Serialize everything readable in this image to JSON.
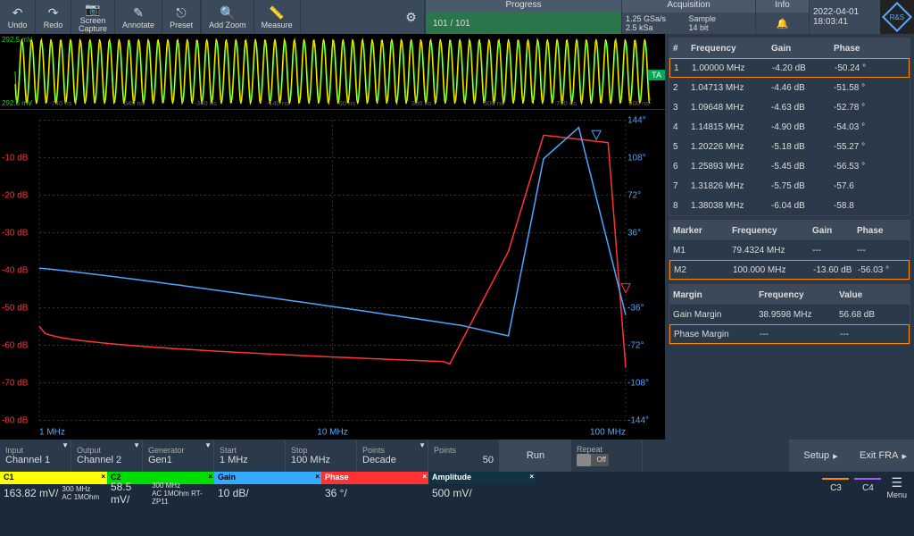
{
  "toolbar": {
    "undo": "Undo",
    "redo": "Redo",
    "screen_capture": "Screen\nCapture",
    "annotate": "Annotate",
    "preset": "Preset",
    "add_zoom": "Add Zoom",
    "measure": "Measure"
  },
  "progress": {
    "title": "Progress",
    "text": "101 / 101"
  },
  "acquisition": {
    "title": "Acquisition",
    "rate": "1.25 GSa/s",
    "samples": "2.5 kSa",
    "mode": "Sample",
    "bits": "14 bit"
  },
  "info": {
    "title": "Info"
  },
  "datetime": {
    "date": "2022-04-01",
    "time": "18:03:41"
  },
  "logo": "R&S",
  "waveform": {
    "top_label": "292.5 mV",
    "bot_label": "292.5 mV",
    "ta_label": "TA",
    "color1": "#ffee00",
    "color2": "#00dd00",
    "xlabels": [
      "-740 ns",
      "-540 ns",
      "-340 ns",
      "-140 ns",
      "60 ns",
      "300 ns",
      "500 ns",
      "700 ns",
      "900 ns"
    ]
  },
  "bode": {
    "gain_color": "#ff3333",
    "phase_color": "#4da6ff",
    "ylabels_gain": [
      "",
      "-10 dB",
      "-20 dB",
      "-30 dB",
      "-40 dB",
      "-50 dB",
      "-60 dB",
      "-70 dB",
      "-80 dB"
    ],
    "ylabels_phase": [
      "144°",
      "108°",
      "72°",
      "36°",
      "",
      "-36°",
      "-72°",
      "-108°",
      "-144°"
    ],
    "xlabels": [
      "1 MHz",
      "10 MHz",
      "100 MHz"
    ],
    "gain_line": "#ff3333",
    "phase_line": "#4da6ff",
    "marker_gain": "dB",
    "marker_phase": "°"
  },
  "freq_table": {
    "headers": {
      "n": "#",
      "f": "Frequency",
      "g": "Gain",
      "p": "Phase"
    },
    "rows": [
      {
        "n": "1",
        "f": "1.00000 MHz",
        "g": "-4.20 dB",
        "p": "-50.24 °",
        "sel": true
      },
      {
        "n": "2",
        "f": "1.04713 MHz",
        "g": "-4.46 dB",
        "p": "-51.58 °"
      },
      {
        "n": "3",
        "f": "1.09648 MHz",
        "g": "-4.63 dB",
        "p": "-52.78 °"
      },
      {
        "n": "4",
        "f": "1.14815 MHz",
        "g": "-4.90 dB",
        "p": "-54.03 °"
      },
      {
        "n": "5",
        "f": "1.20226 MHz",
        "g": "-5.18 dB",
        "p": "-55.27 °"
      },
      {
        "n": "6",
        "f": "1.25893 MHz",
        "g": "-5.45 dB",
        "p": "-56.53 °"
      },
      {
        "n": "7",
        "f": "1.31826 MHz",
        "g": "-5.75 dB",
        "p": "-57.6"
      },
      {
        "n": "8",
        "f": "1.38038 MHz",
        "g": "-6.04 dB",
        "p": "-58.8"
      }
    ]
  },
  "marker_table": {
    "headers": {
      "m": "Marker",
      "f": "Frequency",
      "g": "Gain",
      "p": "Phase"
    },
    "rows": [
      {
        "m": "M1",
        "f": "79.4324 MHz",
        "g": "---",
        "p": "---"
      },
      {
        "m": "M2",
        "f": "100.000 MHz",
        "g": "-13.60 dB",
        "p": "-56.03 °",
        "sel": true
      }
    ]
  },
  "margin_table": {
    "headers": {
      "m": "Margin",
      "f": "Frequency",
      "v": "Value"
    },
    "rows": [
      {
        "m": "Gain Margin",
        "f": "38.9598 MHz",
        "v": "56.68 dB"
      },
      {
        "m": "Phase Margin",
        "f": "---",
        "v": "---",
        "sel": true
      }
    ]
  },
  "params": {
    "input": {
      "label": "Input",
      "value": "Channel 1"
    },
    "output": {
      "label": "Output",
      "value": "Channel 2"
    },
    "generator": {
      "label": "Generator",
      "value": "Gen1"
    },
    "start": {
      "label": "Start",
      "value": "1 MHz"
    },
    "stop": {
      "label": "Stop",
      "value": "100 MHz"
    },
    "points_mode": {
      "label": "Points",
      "value": "Decade"
    },
    "points": {
      "label": "Points",
      "value": "50"
    },
    "run": "Run",
    "repeat": {
      "label": "Repeat",
      "value": "Off"
    },
    "setup": "Setup",
    "exit": "Exit FRA"
  },
  "channels": {
    "c1": {
      "name": "C1",
      "val": "163.82 mV/",
      "bw": "300 MHz",
      "coup": "AC 1MOhm",
      "probe": ""
    },
    "c2": {
      "name": "C2",
      "val": "58.5 mV/",
      "bw": "300 MHz",
      "coup": "AC 1MOhm",
      "probe": "RT-ZP11"
    },
    "gain": {
      "name": "Gain",
      "val": "10 dB/"
    },
    "phase": {
      "name": "Phase",
      "val": "36 °/"
    },
    "amp": {
      "name": "Amplitude",
      "val": "500 mV/"
    },
    "c3": "C3",
    "c4": "C4",
    "menu": "Menu"
  }
}
